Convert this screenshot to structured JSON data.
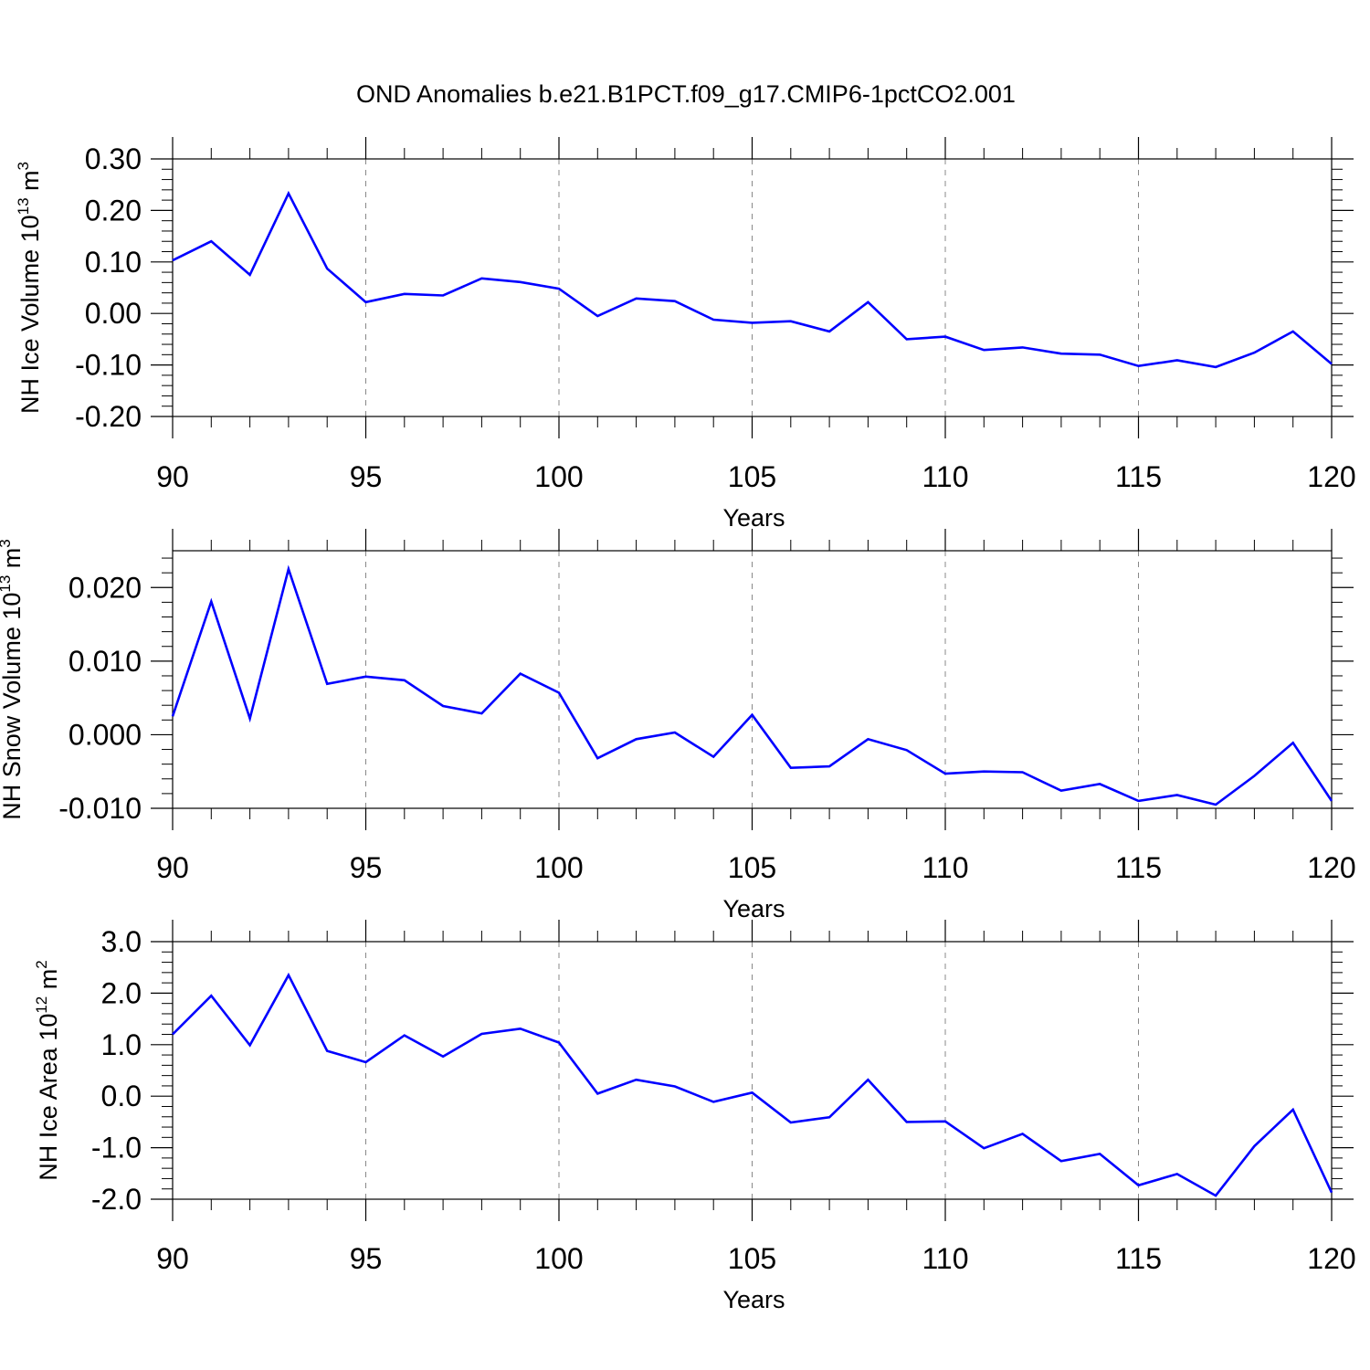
{
  "figure": {
    "title": "OND Anomalies b.e21.B1PCT.f09_g17.CMIP6-1pctCO2.001"
  },
  "style": {
    "line_color": "#0000ff",
    "axis_color": "#000000",
    "grid_color": "#888888"
  },
  "chart_data": [
    {
      "type": "line",
      "title": "OND Anomalies b.e21.B1PCT.f09_g17.CMIP6-1pctCO2.001",
      "xlabel": "Years",
      "ylabel": "NH Ice Volume 10^13 m^3",
      "ylabel_parts": {
        "text": "NH Ice Volume 10",
        "exp1": "13",
        "unit": " m",
        "exp2": "3"
      },
      "xlim": [
        90,
        120
      ],
      "ylim": [
        -0.2,
        0.3
      ],
      "xticks": [
        90,
        95,
        100,
        105,
        110,
        115,
        120
      ],
      "xtick_labels": [
        "90",
        "95",
        "100",
        "105",
        "110",
        "115",
        "120"
      ],
      "yticks": [
        -0.2,
        -0.1,
        0.0,
        0.1,
        0.2,
        0.3
      ],
      "ytick_labels": [
        "-0.20",
        "-0.10",
        "0.00",
        "0.10",
        "0.20",
        "0.30"
      ],
      "grid": "vertical dashed at major x ticks",
      "x": [
        90,
        91,
        92,
        93,
        94,
        95,
        96,
        97,
        98,
        99,
        100,
        101,
        102,
        103,
        104,
        105,
        106,
        107,
        108,
        109,
        110,
        111,
        112,
        113,
        114,
        115,
        116,
        117,
        118,
        119,
        120
      ],
      "series": [
        {
          "values": [
            0.103,
            0.14,
            0.075,
            0.233,
            0.087,
            0.022,
            0.038,
            0.035,
            0.068,
            0.061,
            0.048,
            -0.005,
            0.029,
            0.024,
            -0.012,
            -0.018,
            -0.015,
            -0.035,
            0.022,
            -0.05,
            -0.045,
            -0.071,
            -0.066,
            -0.078,
            -0.08,
            -0.102,
            -0.091,
            -0.104,
            -0.076,
            -0.035,
            -0.098
          ]
        }
      ]
    },
    {
      "type": "line",
      "xlabel": "Years",
      "ylabel": "NH Snow Volume 10^13 m^3",
      "ylabel_parts": {
        "text": "NH Snow Volume 10",
        "exp1": "13",
        "unit": " m",
        "exp2": "3"
      },
      "xlim": [
        90,
        120
      ],
      "ylim": [
        -0.01,
        0.025
      ],
      "xticks": [
        90,
        95,
        100,
        105,
        110,
        115,
        120
      ],
      "xtick_labels": [
        "90",
        "95",
        "100",
        "105",
        "110",
        "115",
        "120"
      ],
      "yticks": [
        -0.01,
        0.0,
        0.01,
        0.02
      ],
      "ytick_labels": [
        "-0.010",
        "0.000",
        "0.010",
        "0.020"
      ],
      "grid": "vertical dashed at major x ticks",
      "x": [
        90,
        91,
        92,
        93,
        94,
        95,
        96,
        97,
        98,
        99,
        100,
        101,
        102,
        103,
        104,
        105,
        106,
        107,
        108,
        109,
        110,
        111,
        112,
        113,
        114,
        115,
        116,
        117,
        118,
        119,
        120
      ],
      "series": [
        {
          "values": [
            0.0025,
            0.0181,
            0.0022,
            0.0225,
            0.0069,
            0.0079,
            0.0074,
            0.0039,
            0.0029,
            0.0083,
            0.0057,
            -0.0032,
            -0.0006,
            0.0003,
            -0.003,
            0.0027,
            -0.0045,
            -0.0043,
            -0.0006,
            -0.0021,
            -0.0053,
            -0.005,
            -0.0051,
            -0.0076,
            -0.0067,
            -0.009,
            -0.0082,
            -0.0095,
            -0.0056,
            -0.0011,
            -0.009
          ]
        }
      ]
    },
    {
      "type": "line",
      "xlabel": "Years",
      "ylabel": "NH Ice Area 10^12 m^2",
      "ylabel_parts": {
        "text": "NH Ice Area 10",
        "exp1": "12",
        "unit": " m",
        "exp2": "2"
      },
      "xlim": [
        90,
        120
      ],
      "ylim": [
        -2.0,
        3.0
      ],
      "xticks": [
        90,
        95,
        100,
        105,
        110,
        115,
        120
      ],
      "xtick_labels": [
        "90",
        "95",
        "100",
        "105",
        "110",
        "115",
        "120"
      ],
      "yticks": [
        -2.0,
        -1.0,
        0.0,
        1.0,
        2.0,
        3.0
      ],
      "ytick_labels": [
        "-2.0",
        "-1.0",
        "0.0",
        "1.0",
        "2.0",
        "3.0"
      ],
      "grid": "vertical dashed at major x ticks",
      "x": [
        90,
        91,
        92,
        93,
        94,
        95,
        96,
        97,
        98,
        99,
        100,
        101,
        102,
        103,
        104,
        105,
        106,
        107,
        108,
        109,
        110,
        111,
        112,
        113,
        114,
        115,
        116,
        117,
        118,
        119,
        120
      ],
      "series": [
        {
          "values": [
            1.2,
            1.95,
            0.99,
            2.35,
            0.88,
            0.66,
            1.18,
            0.77,
            1.21,
            1.31,
            1.04,
            0.05,
            0.32,
            0.19,
            -0.11,
            0.07,
            -0.51,
            -0.41,
            0.32,
            -0.5,
            -0.49,
            -1.01,
            -0.73,
            -1.26,
            -1.12,
            -1.73,
            -1.51,
            -1.93,
            -0.97,
            -0.26,
            -1.87
          ]
        }
      ]
    }
  ]
}
